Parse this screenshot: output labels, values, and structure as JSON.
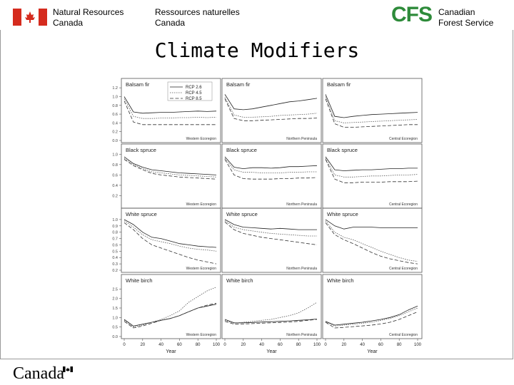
{
  "header": {
    "dept_en_line1": "Natural Resources",
    "dept_en_line2": "Canada",
    "dept_fr_line1": "Ressources naturelles",
    "dept_fr_line2": "Canada",
    "cfs_logo": "CFS",
    "cfs_line1": "Canadian",
    "cfs_line2": "Forest Service",
    "flag_color": "#d52b1e"
  },
  "slide": {
    "title": "Climate Modifiers"
  },
  "footer": {
    "wordmark": "Canada"
  },
  "chart_data": {
    "type": "line",
    "grid": "3x4 panels",
    "legend": {
      "placement": "top-right of first panel",
      "entries": [
        "RCP 2.6",
        "RCP 4.5",
        "RCP 8.5"
      ]
    },
    "xlabel": "Year",
    "x": [
      0,
      10,
      20,
      30,
      40,
      50,
      60,
      70,
      80,
      90,
      100
    ],
    "xticks": [
      "0",
      "20",
      "40",
      "60",
      "80",
      "100"
    ],
    "rows": [
      {
        "species": "Balsam fir",
        "yticks": [
          "0.0",
          "0.2",
          "0.4",
          "0.6",
          "0.8",
          "1.0",
          "1.2"
        ],
        "ylim": [
          0,
          1.3
        ]
      },
      {
        "species": "Black spruce",
        "yticks": [
          "0.2",
          "0.4",
          "0.6",
          "0.8",
          "1.0"
        ],
        "ylim": [
          0,
          1.1
        ]
      },
      {
        "species": "White spruce",
        "yticks": [
          "0.2",
          "0.3",
          "0.4",
          "0.5",
          "0.6",
          "0.7",
          "0.8",
          "0.9",
          "1.0"
        ],
        "ylim": [
          0.2,
          1.1
        ]
      },
      {
        "species": "White birch",
        "yticks": [
          "0.0",
          "0.5",
          "1.0",
          "1.5",
          "2.0",
          "2.5"
        ],
        "ylim": [
          0,
          3.0
        ]
      }
    ],
    "panels": [
      {
        "species": "Balsam fir",
        "region": "Western Ecoregion",
        "series": [
          {
            "name": "RCP 2.6",
            "values": [
              1.0,
              0.65,
              0.62,
              0.63,
              0.64,
              0.64,
              0.65,
              0.66,
              0.67,
              0.66,
              0.67
            ]
          },
          {
            "name": "RCP 4.5",
            "values": [
              0.95,
              0.55,
              0.5,
              0.5,
              0.51,
              0.51,
              0.52,
              0.52,
              0.53,
              0.52,
              0.53
            ]
          },
          {
            "name": "RCP 8.5",
            "values": [
              0.9,
              0.42,
              0.36,
              0.36,
              0.36,
              0.36,
              0.36,
              0.36,
              0.36,
              0.36,
              0.36
            ]
          }
        ]
      },
      {
        "species": "Balsam fir",
        "region": "Northern Peninsula",
        "series": [
          {
            "name": "RCP 2.6",
            "values": [
              1.05,
              0.72,
              0.7,
              0.72,
              0.76,
              0.8,
              0.84,
              0.88,
              0.9,
              0.93,
              0.96
            ]
          },
          {
            "name": "RCP 4.5",
            "values": [
              0.98,
              0.58,
              0.53,
              0.53,
              0.54,
              0.55,
              0.57,
              0.58,
              0.59,
              0.6,
              0.62
            ]
          },
          {
            "name": "RCP 8.5",
            "values": [
              0.95,
              0.5,
              0.45,
              0.45,
              0.46,
              0.47,
              0.48,
              0.49,
              0.5,
              0.5,
              0.51
            ]
          }
        ]
      },
      {
        "species": "Balsam fir",
        "region": "Central Ecoregion",
        "series": [
          {
            "name": "RCP 2.6",
            "values": [
              1.05,
              0.55,
              0.52,
              0.55,
              0.57,
              0.59,
              0.6,
              0.61,
              0.62,
              0.63,
              0.64
            ]
          },
          {
            "name": "RCP 4.5",
            "values": [
              1.0,
              0.45,
              0.4,
              0.41,
              0.42,
              0.43,
              0.44,
              0.45,
              0.46,
              0.47,
              0.48
            ]
          },
          {
            "name": "RCP 8.5",
            "values": [
              0.95,
              0.38,
              0.3,
              0.3,
              0.31,
              0.32,
              0.33,
              0.34,
              0.35,
              0.36,
              0.36
            ]
          }
        ]
      },
      {
        "species": "Black spruce",
        "region": "Western Ecoregion",
        "series": [
          {
            "name": "RCP 2.6",
            "values": [
              0.95,
              0.82,
              0.75,
              0.7,
              0.68,
              0.66,
              0.64,
              0.63,
              0.62,
              0.61,
              0.6
            ]
          },
          {
            "name": "RCP 4.5",
            "values": [
              0.92,
              0.8,
              0.72,
              0.66,
              0.64,
              0.62,
              0.6,
              0.59,
              0.58,
              0.57,
              0.56
            ]
          },
          {
            "name": "RCP 8.5",
            "values": [
              0.9,
              0.78,
              0.7,
              0.63,
              0.6,
              0.58,
              0.56,
              0.55,
              0.54,
              0.53,
              0.52
            ]
          }
        ]
      },
      {
        "species": "Black spruce",
        "region": "Northern Peninsula",
        "series": [
          {
            "name": "RCP 2.6",
            "values": [
              0.95,
              0.75,
              0.72,
              0.74,
              0.74,
              0.73,
              0.74,
              0.76,
              0.76,
              0.77,
              0.78
            ]
          },
          {
            "name": "RCP 4.5",
            "values": [
              0.92,
              0.7,
              0.65,
              0.65,
              0.64,
              0.64,
              0.64,
              0.65,
              0.65,
              0.66,
              0.66
            ]
          },
          {
            "name": "RCP 8.5",
            "values": [
              0.9,
              0.6,
              0.53,
              0.52,
              0.52,
              0.52,
              0.53,
              0.53,
              0.54,
              0.54,
              0.55
            ]
          }
        ]
      },
      {
        "species": "Black spruce",
        "region": "Central Ecoregion",
        "series": [
          {
            "name": "RCP 2.6",
            "values": [
              0.95,
              0.7,
              0.68,
              0.69,
              0.7,
              0.7,
              0.71,
              0.72,
              0.72,
              0.73,
              0.73
            ]
          },
          {
            "name": "RCP 4.5",
            "values": [
              0.92,
              0.6,
              0.56,
              0.56,
              0.57,
              0.58,
              0.58,
              0.59,
              0.6,
              0.6,
              0.61
            ]
          },
          {
            "name": "RCP 8.5",
            "values": [
              0.9,
              0.52,
              0.45,
              0.45,
              0.46,
              0.46,
              0.46,
              0.47,
              0.47,
              0.47,
              0.48
            ]
          }
        ]
      },
      {
        "species": "White spruce",
        "region": "Western Ecoregion",
        "series": [
          {
            "name": "RCP 2.6",
            "values": [
              1.0,
              0.92,
              0.8,
              0.72,
              0.7,
              0.66,
              0.62,
              0.6,
              0.58,
              0.57,
              0.56
            ]
          },
          {
            "name": "RCP 4.5",
            "values": [
              0.98,
              0.88,
              0.76,
              0.68,
              0.65,
              0.62,
              0.58,
              0.55,
              0.53,
              0.52,
              0.5
            ]
          },
          {
            "name": "RCP 8.5",
            "values": [
              0.95,
              0.84,
              0.7,
              0.6,
              0.55,
              0.5,
              0.45,
              0.4,
              0.36,
              0.33,
              0.3
            ]
          }
        ]
      },
      {
        "species": "White spruce",
        "region": "Northern Peninsula",
        "series": [
          {
            "name": "RCP 2.6",
            "values": [
              1.0,
              0.92,
              0.88,
              0.87,
              0.86,
              0.85,
              0.86,
              0.85,
              0.84,
              0.84,
              0.84
            ]
          },
          {
            "name": "RCP 4.5",
            "values": [
              0.98,
              0.88,
              0.84,
              0.82,
              0.8,
              0.78,
              0.77,
              0.76,
              0.75,
              0.74,
              0.74
            ]
          },
          {
            "name": "RCP 8.5",
            "values": [
              0.96,
              0.84,
              0.78,
              0.75,
              0.72,
              0.7,
              0.68,
              0.66,
              0.64,
              0.62,
              0.6
            ]
          }
        ]
      },
      {
        "species": "White spruce",
        "region": "Central Ecoregion",
        "series": [
          {
            "name": "RCP 2.6",
            "values": [
              1.0,
              0.9,
              0.85,
              0.88,
              0.88,
              0.88,
              0.87,
              0.87,
              0.87,
              0.87,
              0.87
            ]
          },
          {
            "name": "RCP 4.5",
            "values": [
              0.98,
              0.8,
              0.72,
              0.68,
              0.62,
              0.56,
              0.5,
              0.45,
              0.4,
              0.36,
              0.34
            ]
          },
          {
            "name": "RCP 8.5",
            "values": [
              0.95,
              0.76,
              0.68,
              0.62,
              0.55,
              0.48,
              0.42,
              0.38,
              0.35,
              0.32,
              0.3
            ]
          }
        ]
      },
      {
        "species": "White birch",
        "region": "Western Ecoregion",
        "series": [
          {
            "name": "RCP 2.6",
            "values": [
              0.9,
              0.55,
              0.65,
              0.75,
              0.85,
              0.95,
              1.1,
              1.3,
              1.5,
              1.6,
              1.7
            ]
          },
          {
            "name": "RCP 4.5",
            "values": [
              0.85,
              0.5,
              0.6,
              0.75,
              0.9,
              1.1,
              1.35,
              1.8,
              2.1,
              2.4,
              2.6
            ]
          },
          {
            "name": "RCP 8.5",
            "values": [
              0.8,
              0.45,
              0.55,
              0.7,
              0.85,
              0.95,
              1.1,
              1.3,
              1.5,
              1.65,
              1.75
            ]
          }
        ]
      },
      {
        "species": "White birch",
        "region": "Northern Peninsula",
        "series": [
          {
            "name": "RCP 2.6",
            "values": [
              0.9,
              0.72,
              0.72,
              0.74,
              0.76,
              0.78,
              0.8,
              0.82,
              0.85,
              0.88,
              0.92
            ]
          },
          {
            "name": "RCP 4.5",
            "values": [
              0.85,
              0.7,
              0.75,
              0.8,
              0.85,
              0.9,
              1.0,
              1.1,
              1.25,
              1.5,
              1.8
            ]
          },
          {
            "name": "RCP 8.5",
            "values": [
              0.8,
              0.65,
              0.66,
              0.68,
              0.7,
              0.72,
              0.74,
              0.76,
              0.8,
              0.85,
              0.9
            ]
          }
        ]
      },
      {
        "species": "White birch",
        "region": "Central Ecoregion",
        "series": [
          {
            "name": "RCP 2.6",
            "values": [
              0.8,
              0.6,
              0.65,
              0.7,
              0.75,
              0.82,
              0.9,
              1.0,
              1.15,
              1.4,
              1.6
            ]
          },
          {
            "name": "RCP 4.5",
            "values": [
              0.78,
              0.55,
              0.6,
              0.65,
              0.7,
              0.75,
              0.85,
              0.95,
              1.1,
              1.3,
              1.5
            ]
          },
          {
            "name": "RCP 8.5",
            "values": [
              0.75,
              0.45,
              0.48,
              0.52,
              0.56,
              0.6,
              0.66,
              0.75,
              0.9,
              1.1,
              1.3
            ]
          }
        ]
      }
    ]
  }
}
